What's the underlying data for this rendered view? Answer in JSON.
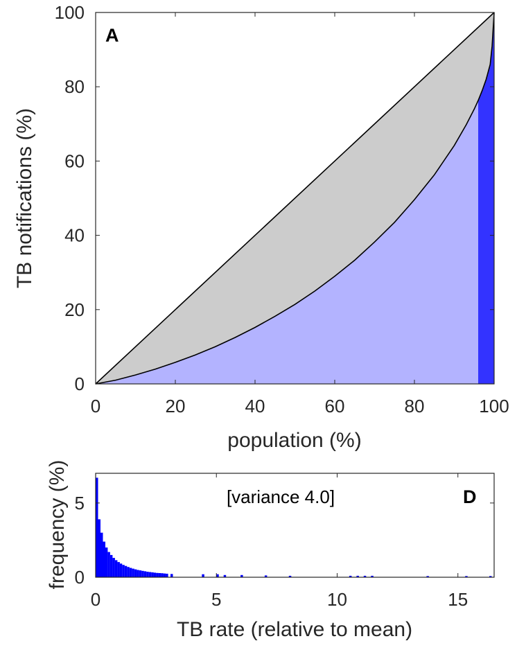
{
  "chart_data": [
    {
      "type": "area",
      "panel_label": "A",
      "xlabel": "population (%)",
      "ylabel": "TB notifications (%)",
      "xlim": [
        0,
        100
      ],
      "ylim": [
        0,
        100
      ],
      "x_ticks": [
        "0",
        "20",
        "40",
        "60",
        "80",
        "100"
      ],
      "y_ticks": [
        "0",
        "20",
        "40",
        "60",
        "80",
        "100"
      ],
      "grid": false,
      "equality_line": {
        "x": [
          0,
          100
        ],
        "y": [
          0,
          100
        ]
      },
      "lorenz_curve": {
        "x": [
          0,
          5,
          10,
          15,
          20,
          25,
          30,
          35,
          40,
          45,
          50,
          55,
          60,
          65,
          70,
          75,
          80,
          85,
          90,
          93,
          95,
          96,
          97,
          98,
          99,
          99.5,
          100
        ],
        "y": [
          0,
          1.0,
          2.4,
          4.0,
          5.8,
          7.8,
          10.0,
          12.5,
          15.2,
          18.2,
          21.4,
          25.0,
          29.0,
          33.3,
          38.2,
          43.5,
          49.6,
          56.3,
          64.2,
          69.8,
          74.0,
          76.3,
          79.0,
          82.0,
          86.0,
          91.0,
          100
        ]
      },
      "highlight_region": {
        "x_start": 96,
        "x_end": 100
      },
      "colors": {
        "between_curves": "#cccccc",
        "under_curve": "#b3b3ff",
        "highlight": "#3333ff",
        "lines": "#000000"
      }
    },
    {
      "type": "bar",
      "panel_label": "D",
      "annotation": "[variance 4.0]",
      "xlabel": "TB rate (relative to mean)",
      "ylabel": "frequency (%)",
      "xlim": [
        0,
        16.5
      ],
      "ylim": [
        0,
        7
      ],
      "x_ticks": [
        "0",
        "5",
        "10",
        "15"
      ],
      "y_ticks": [
        "0",
        "5"
      ],
      "grid": false,
      "bin_width": 0.1,
      "bins_x": [
        0.1,
        0.2,
        0.3,
        0.4,
        0.5,
        0.6,
        0.7,
        0.8,
        0.9,
        1.0,
        1.1,
        1.2,
        1.3,
        1.4,
        1.5,
        1.6,
        1.7,
        1.8,
        1.9,
        2.0,
        2.1,
        2.2,
        2.3,
        2.4,
        2.5,
        2.6,
        2.7,
        2.8,
        2.9,
        3.0,
        3.2,
        4.5,
        5.1,
        5.4,
        6.1,
        7.1,
        8.1,
        10.6,
        10.9,
        11.2,
        11.5,
        13.8,
        15.4,
        16.4
      ],
      "values": [
        6.7,
        3.9,
        3.0,
        2.4,
        2.0,
        1.7,
        1.5,
        1.3,
        1.15,
        1.02,
        0.92,
        0.83,
        0.76,
        0.69,
        0.63,
        0.58,
        0.53,
        0.49,
        0.46,
        0.43,
        0.4,
        0.37,
        0.35,
        0.33,
        0.31,
        0.29,
        0.28,
        0.27,
        0.25,
        0.24,
        0.22,
        0.2,
        0.2,
        0.15,
        0.15,
        0.12,
        0.1,
        0.1,
        0.1,
        0.1,
        0.1,
        0.08,
        0.08,
        0.08
      ],
      "colors": {
        "bars": "#0000ff"
      }
    }
  ]
}
